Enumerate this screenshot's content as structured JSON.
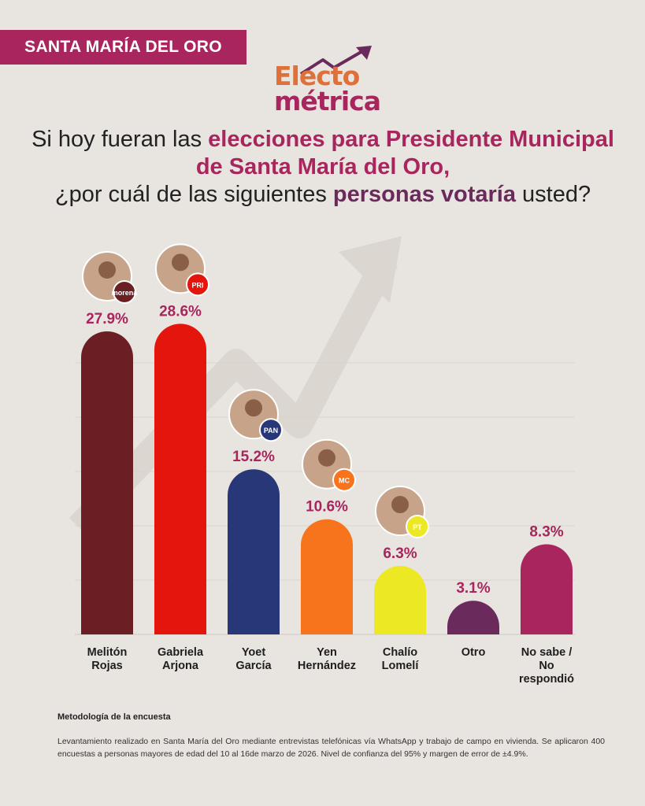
{
  "header": {
    "region_label": "SANTA MARÍA DEL ORO",
    "logo_line1": "Electo",
    "logo_line2": "métrica"
  },
  "question": {
    "part1": "Si hoy fueran las ",
    "highlight1": "elecciones para Presidente Municipal de Santa María del Oro,",
    "part2": "¿por cuál de las siguientes ",
    "highlight2": "personas votaría",
    "part3": " usted?"
  },
  "chart_data": {
    "type": "bar",
    "title": "Si hoy fueran las elecciones para Presidente Municipal de Santa María del Oro, ¿por cuál de las siguientes personas votaría usted?",
    "categories": [
      [
        "Melitón",
        "Rojas"
      ],
      [
        "Gabriela",
        "Arjona"
      ],
      [
        "Yoet",
        "García"
      ],
      [
        "Yen",
        "Hernández"
      ],
      [
        "Chalío",
        "Lomelí"
      ],
      [
        "Otro"
      ],
      [
        "No sabe /",
        "No",
        "respondió"
      ]
    ],
    "values": [
      27.9,
      28.6,
      15.2,
      10.6,
      6.3,
      3.1,
      8.3
    ],
    "value_labels": [
      "27.9%",
      "28.6%",
      "15.2%",
      "10.6%",
      "6.3%",
      "3.1%",
      "8.3%"
    ],
    "parties": [
      "morena",
      "PRI",
      "PAN",
      "MC",
      "PT",
      "",
      ""
    ],
    "colors": [
      "#6b1f24",
      "#e4150c",
      "#283777",
      "#f7741c",
      "#ede824",
      "#6a2a5c",
      "#a8255d"
    ],
    "ylim": [
      0,
      30
    ],
    "ylabel": "",
    "xlabel": "",
    "grid": true
  },
  "methodology": {
    "title": "Metodología de la encuesta",
    "text": "Levantamiento realizado en Santa María del Oro mediante entrevistas telefónicas vía WhatsApp y trabajo de campo en vivienda. Se aplicaron 400 encuestas a personas mayores de edad del 10 al 16de marzo de 2026. Nivel de confianza del 95% y margen de error de ±4.9%."
  },
  "colors": {
    "accent": "#a8255d",
    "accent_dark": "#6b2a5c",
    "logo_orange": "#e0703a",
    "background": "#e8e4df"
  }
}
